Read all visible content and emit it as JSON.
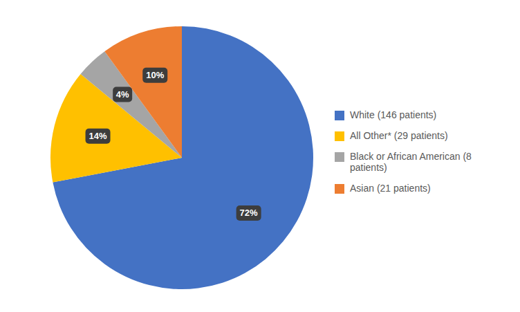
{
  "chart_data": {
    "type": "pie",
    "categories": [
      "White (146 patients)",
      "All Other* (29 patients)",
      "Black or African American (8\n patients)",
      "Asian (21 patients)"
    ],
    "values": [
      72,
      14,
      4,
      10
    ],
    "value_labels": [
      "72%",
      "14%",
      "4%",
      "10%"
    ],
    "colors": [
      "#4472C4",
      "#FFC000",
      "#A5A5A5",
      "#ED7D31"
    ],
    "data_labels": true
  }
}
